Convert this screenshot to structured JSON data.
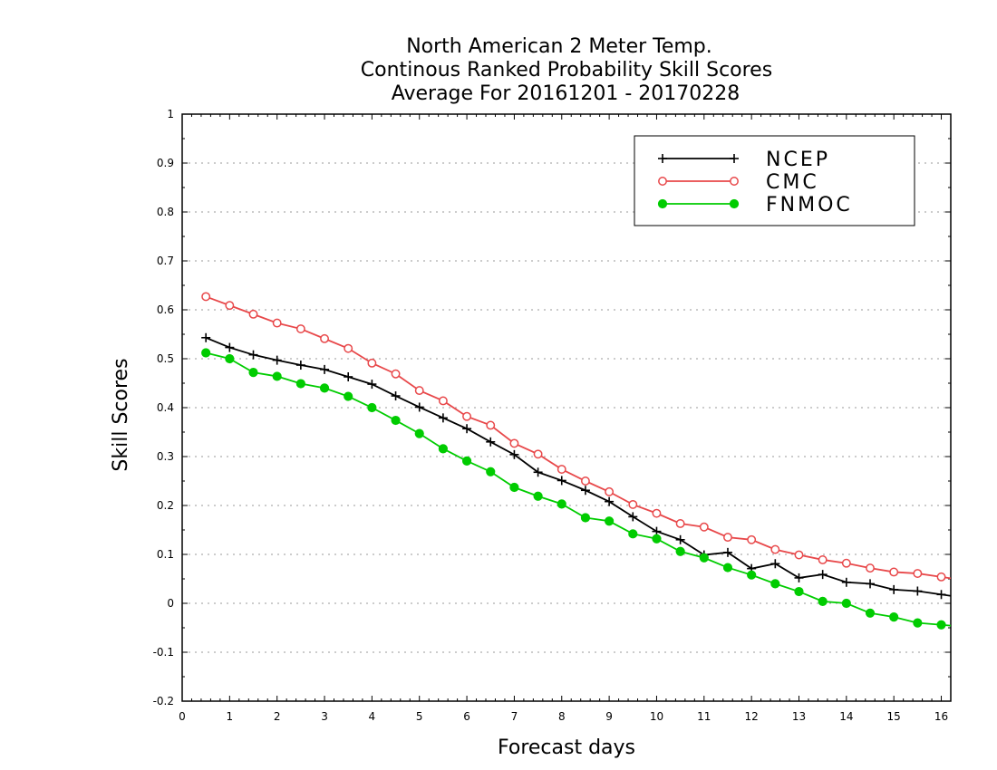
{
  "chart_data": {
    "type": "line",
    "title": [
      "North American 2 Meter Temp.",
      "Continous Ranked Probability Skill Scores",
      "Average For 20161201 - 20170228"
    ],
    "xlabel": "Forecast days",
    "ylabel": "Skill Scores",
    "xlim": [
      0,
      16.2
    ],
    "ylim": [
      -0.2,
      1
    ],
    "xticks": [
      "0",
      "1",
      "2",
      "3",
      "4",
      "5",
      "6",
      "7",
      "8",
      "9",
      "10",
      "11",
      "12",
      "13",
      "14",
      "15",
      "16"
    ],
    "yticks": [
      "-0.2",
      "-0.1",
      "0",
      "0.1",
      "0.2",
      "0.3",
      "0.4",
      "0.5",
      "0.6",
      "0.7",
      "0.8",
      "0.9",
      "1"
    ],
    "grid": true,
    "legend_position": "top-right",
    "x": [
      0.5,
      1,
      1.5,
      2,
      2.5,
      3,
      3.5,
      4,
      4.5,
      5,
      5.5,
      6,
      6.5,
      7,
      7.5,
      8,
      8.5,
      9,
      9.5,
      10,
      10.5,
      11,
      11.5,
      12,
      12.5,
      13,
      13.5,
      14,
      14.5,
      15,
      15.5,
      16,
      16.2
    ],
    "series": [
      {
        "name": "NCEP",
        "color": "#000000",
        "marker": "plus",
        "values": [
          0.543,
          0.523,
          0.508,
          0.497,
          0.487,
          0.478,
          0.463,
          0.448,
          0.424,
          0.401,
          0.379,
          0.357,
          0.33,
          0.304,
          0.268,
          0.251,
          0.231,
          0.208,
          0.177,
          0.147,
          0.13,
          0.099,
          0.104,
          0.071,
          0.081,
          0.052,
          0.059,
          0.043,
          0.04,
          0.028,
          0.025,
          0.018,
          null
        ]
      },
      {
        "name": "CMC",
        "color": "#e8484a",
        "marker": "open-circle",
        "values": [
          0.627,
          0.609,
          0.591,
          0.573,
          0.561,
          0.541,
          0.521,
          0.491,
          0.469,
          0.435,
          0.414,
          0.382,
          0.364,
          0.327,
          0.305,
          0.274,
          0.25,
          0.228,
          0.202,
          0.184,
          0.163,
          0.156,
          0.135,
          0.13,
          0.11,
          0.099,
          0.089,
          0.082,
          0.072,
          0.064,
          0.061,
          0.054,
          null
        ]
      },
      {
        "name": "FNMOC",
        "color": "#00cc00",
        "marker": "filled-circle",
        "values": [
          0.512,
          0.5,
          0.472,
          0.464,
          0.449,
          0.44,
          0.423,
          0.4,
          0.374,
          0.347,
          0.316,
          0.291,
          0.269,
          0.237,
          0.219,
          0.203,
          0.175,
          0.168,
          0.142,
          0.132,
          0.106,
          0.093,
          0.073,
          0.058,
          0.04,
          0.024,
          0.004,
          -0.0,
          -0.02,
          -0.028,
          -0.04,
          -0.044,
          null
        ]
      }
    ]
  }
}
